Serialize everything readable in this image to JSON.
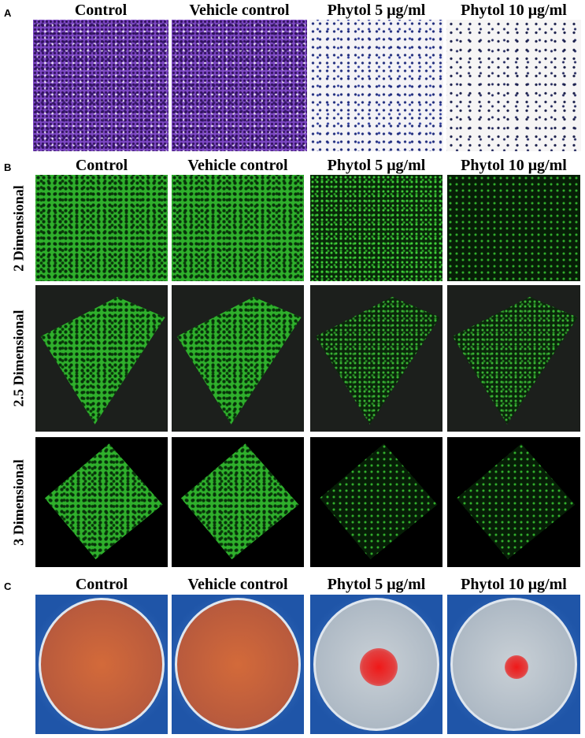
{
  "panels": [
    {
      "label": "A",
      "columns": [
        "Control",
        "Vehicle control",
        "Phytol 5 μg/ml",
        "Phytol 10 μg/ml"
      ]
    },
    {
      "label": "B",
      "columns": [
        "Control",
        "Vehicle control",
        "Phytol 5 μg/ml",
        "Phytol 10 μg/ml"
      ],
      "rows": [
        "2 Dimensional",
        "2.5 Dimensional",
        "3 Dimensional"
      ]
    },
    {
      "label": "C",
      "columns": [
        "Control",
        "Vehicle control",
        "Phytol 5 μg/ml",
        "Phytol 10 μg/ml"
      ]
    }
  ]
}
